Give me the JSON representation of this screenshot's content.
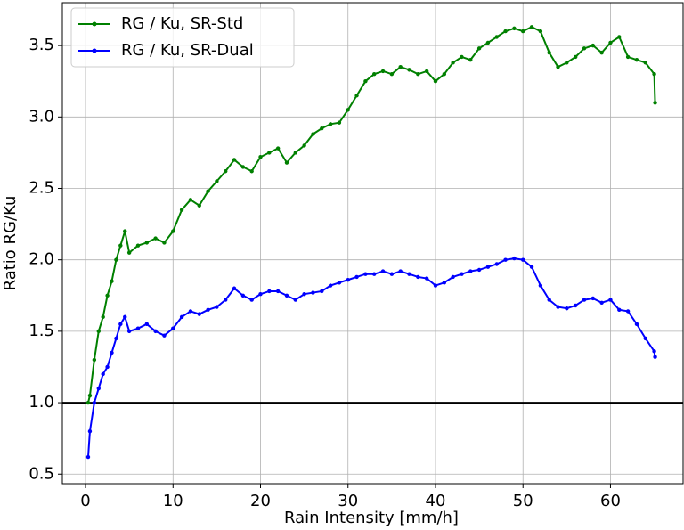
{
  "chart_data": {
    "type": "line",
    "xlabel": "Rain Intensity [mm/h]",
    "ylabel": "Ratio RG/Ku",
    "x": [
      0.3,
      0.5,
      1,
      1.5,
      2,
      2.5,
      3,
      3.5,
      4,
      4.5,
      5,
      6,
      7,
      8,
      9,
      10,
      11,
      12,
      13,
      14,
      15,
      16,
      17,
      18,
      19,
      20,
      21,
      22,
      23,
      24,
      25,
      26,
      27,
      28,
      29,
      30,
      31,
      32,
      33,
      34,
      35,
      36,
      37,
      38,
      39,
      40,
      41,
      42,
      43,
      44,
      45,
      46,
      47,
      48,
      49,
      50,
      51,
      52,
      53,
      54,
      55,
      56,
      57,
      58,
      59,
      60,
      61,
      62,
      63,
      64,
      65,
      65.1
    ],
    "series": [
      {
        "name": "RG / Ku, SR-Std",
        "color": "#008000",
        "values": [
          1.0,
          1.05,
          1.3,
          1.5,
          1.6,
          1.75,
          1.85,
          2.0,
          2.1,
          2.2,
          2.05,
          2.1,
          2.12,
          2.15,
          2.12,
          2.2,
          2.35,
          2.42,
          2.38,
          2.48,
          2.55,
          2.62,
          2.7,
          2.65,
          2.62,
          2.72,
          2.75,
          2.78,
          2.68,
          2.75,
          2.8,
          2.88,
          2.92,
          2.95,
          2.96,
          3.05,
          3.15,
          3.25,
          3.3,
          3.32,
          3.3,
          3.35,
          3.33,
          3.3,
          3.32,
          3.25,
          3.3,
          3.38,
          3.42,
          3.4,
          3.48,
          3.52,
          3.56,
          3.6,
          3.62,
          3.6,
          3.63,
          3.6,
          3.45,
          3.35,
          3.38,
          3.42,
          3.48,
          3.5,
          3.45,
          3.52,
          3.56,
          3.42,
          3.4,
          3.38,
          3.3,
          3.1
        ]
      },
      {
        "name": "RG / Ku, SR-Dual",
        "color": "#0000ff",
        "values": [
          0.62,
          0.8,
          1.0,
          1.1,
          1.2,
          1.25,
          1.35,
          1.45,
          1.55,
          1.6,
          1.5,
          1.52,
          1.55,
          1.5,
          1.47,
          1.52,
          1.6,
          1.64,
          1.62,
          1.65,
          1.67,
          1.72,
          1.8,
          1.75,
          1.72,
          1.76,
          1.78,
          1.78,
          1.75,
          1.72,
          1.76,
          1.77,
          1.78,
          1.82,
          1.84,
          1.86,
          1.88,
          1.9,
          1.9,
          1.92,
          1.9,
          1.92,
          1.9,
          1.88,
          1.87,
          1.82,
          1.84,
          1.88,
          1.9,
          1.92,
          1.93,
          1.95,
          1.97,
          2.0,
          2.01,
          2.0,
          1.95,
          1.82,
          1.72,
          1.67,
          1.66,
          1.68,
          1.72,
          1.73,
          1.7,
          1.72,
          1.65,
          1.64,
          1.55,
          1.45,
          1.36,
          1.32
        ]
      }
    ],
    "reference_line": 1.0,
    "xlim": [
      -2.65,
      68.3
    ],
    "ylim": [
      0.433,
      3.8
    ],
    "xticks": [
      0,
      10,
      20,
      30,
      40,
      50,
      60
    ],
    "yticks": [
      0.5,
      {
        "value": 1,
        "label": "1.0"
      },
      1.5,
      {
        "value": 2,
        "label": "2.0"
      },
      2.5,
      {
        "value": 3,
        "label": "3.0"
      },
      3.5
    ],
    "grid": true,
    "legend": "upper-left"
  }
}
